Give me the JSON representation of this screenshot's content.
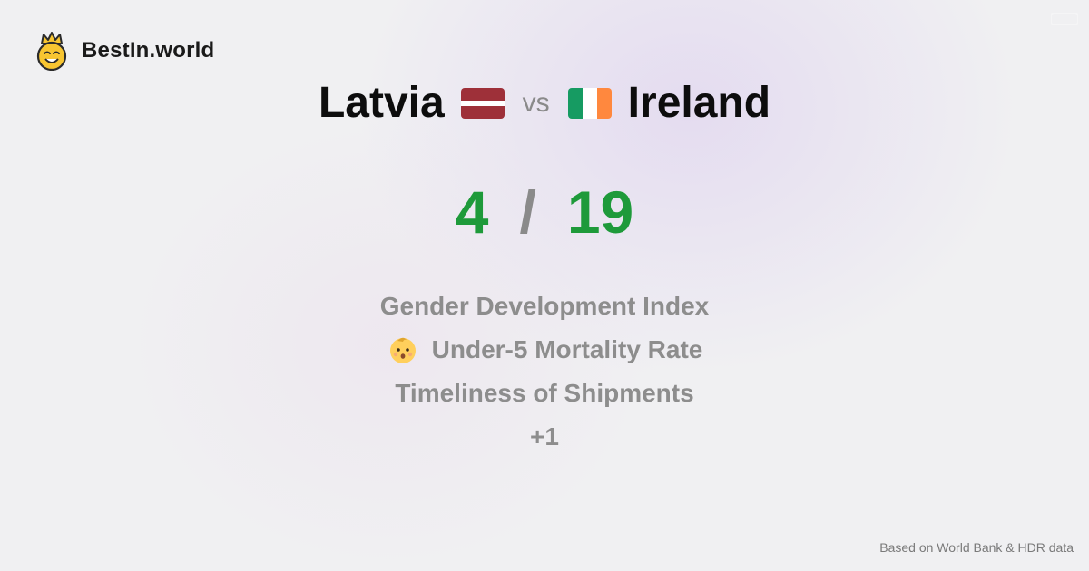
{
  "brand": {
    "name": "BestIn.world",
    "logo_icon": "smiling-crown-face-icon"
  },
  "comparison": {
    "left_country": "Latvia",
    "left_flag_icon": "latvia-flag-icon",
    "vs_label": "vs",
    "right_country": "Ireland",
    "right_flag_icon": "ireland-flag-icon"
  },
  "score": {
    "left": "4",
    "separator": "/",
    "right": "19"
  },
  "metrics": [
    {
      "label": "Gender Development Index"
    },
    {
      "label": "Under-5 Mortality Rate",
      "icon": "baby-face-icon"
    },
    {
      "label": "Timeliness of Shipments"
    },
    {
      "label": "+1"
    }
  ],
  "footer": {
    "note": "Based on World Bank & HDR data"
  },
  "colors": {
    "score_green": "#1e9a3a",
    "muted_gray": "#8d8d8d",
    "latvia_red": "#9e3039",
    "ireland_green": "#169b62",
    "ireland_orange": "#ff883e"
  }
}
